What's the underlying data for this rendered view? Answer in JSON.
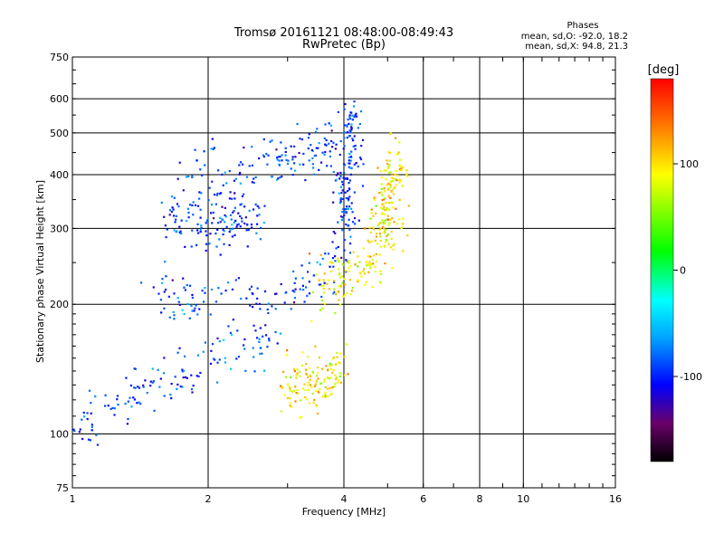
{
  "chart_data": {
    "type": "scatter",
    "title": "Tromsø 20161121 08:48:00-08:49:43",
    "subtitle": "RwPretec (Bp)",
    "xlabel": "Frequency [MHz]",
    "ylabel": "Stationary phase Virtual Height [km]",
    "x_scale": "log",
    "y_scale": "log",
    "xlim": [
      1,
      16
    ],
    "ylim": [
      75,
      750
    ],
    "x_ticks": [
      1,
      2,
      4,
      6,
      8,
      10,
      16
    ],
    "y_ticks": [
      75,
      100,
      200,
      300,
      400,
      500,
      600,
      750
    ],
    "grid": true,
    "stats": {
      "header": "Phases",
      "line1": "mean, sd,O: -92.0, 18.2",
      "line2": "mean, sd,X:  94.8, 21.3"
    },
    "colorbar": {
      "label": "[deg]",
      "range": [
        -180,
        180
      ],
      "ticks": [
        100,
        0,
        -100
      ],
      "colormap": [
        "#000000",
        "#6a006a",
        "#0000ff",
        "#00a0ff",
        "#00ffff",
        "#00ff00",
        "#ffff00",
        "#ff8000",
        "#ff0000"
      ]
    },
    "series": [
      {
        "name": "O",
        "phase": -92.0,
        "phase_sd": 18.2,
        "traces": [
          {
            "x": [
              1.02,
              1.1,
              1.25,
              1.4,
              1.6,
              1.8,
              2.0,
              2.2,
              2.5,
              2.8
            ],
            "y": [
              100,
              105,
              115,
              125,
              135,
              140,
              150,
              155,
              160,
              165
            ]
          },
          {
            "x": [
              1.5,
              1.7,
              2.0,
              2.5,
              3.0,
              3.5,
              3.9,
              4.05
            ],
            "y": [
              215,
              208,
              203,
              205,
              210,
              225,
              260,
              320
            ]
          },
          {
            "x": [
              4.0,
              4.05,
              4.1,
              4.15
            ],
            "y": [
              300,
              380,
              450,
              580
            ]
          },
          {
            "x": [
              1.6,
              1.9,
              2.1,
              2.3,
              2.6
            ],
            "y": [
              310,
              320,
              300,
              330,
              310
            ]
          },
          {
            "x": [
              1.8,
              2.2,
              2.6,
              3.0,
              3.4,
              3.8
            ],
            "y": [
              400,
              410,
              420,
              430,
              440,
              470
            ]
          }
        ]
      },
      {
        "name": "X",
        "phase": 94.8,
        "phase_sd": 21.3,
        "traces": [
          {
            "x": [
              3.5,
              3.8,
              4.2,
              4.6,
              5.0,
              5.4
            ],
            "y": [
              220,
              225,
              232,
              245,
              270,
              320
            ]
          },
          {
            "x": [
              4.7,
              4.9,
              5.1,
              5.3
            ],
            "y": [
              280,
              330,
              390,
              440
            ]
          },
          {
            "x": [
              3.0,
              3.3,
              3.6,
              3.9
            ],
            "y": [
              130,
              128,
              132,
              140
            ]
          }
        ]
      }
    ]
  }
}
